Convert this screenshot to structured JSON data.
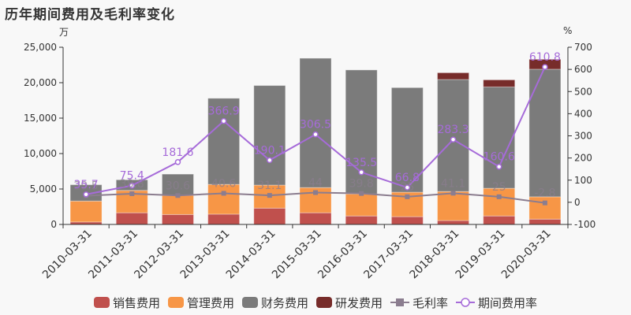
{
  "header": {
    "title": "历年期间费用及毛利率变化",
    "left_unit": "万",
    "right_unit": "%"
  },
  "colors": {
    "sales": "#c0504d",
    "admin": "#f79646",
    "finance": "#7b7b7b",
    "rnd": "#772c2a",
    "gross_margin": "#8b7d8f",
    "period_rate": "#a66bd9",
    "background": "#f8f8f8"
  },
  "legend": [
    {
      "label": "销售费用",
      "type": "box",
      "color": "#c0504d"
    },
    {
      "label": "管理费用",
      "type": "box",
      "color": "#f79646"
    },
    {
      "label": "财务费用",
      "type": "box",
      "color": "#7b7b7b"
    },
    {
      "label": "研发费用",
      "type": "box",
      "color": "#772c2a"
    },
    {
      "label": "毛利率",
      "type": "line-square",
      "color": "#8b7d8f"
    },
    {
      "label": "期间费用率",
      "type": "line-circle",
      "color": "#a66bd9"
    }
  ],
  "chart_data": {
    "type": "bar",
    "title": "历年期间费用及毛利率变化",
    "xlabel": "",
    "ylabel": "万",
    "y2label": "%",
    "ylim": [
      0,
      25000
    ],
    "y2lim": [
      -100,
      700
    ],
    "yticks": [
      "0",
      "5,000",
      "10,000",
      "15,000",
      "20,000",
      "25,000"
    ],
    "y2ticks": [
      "-100",
      "0",
      "100",
      "200",
      "300",
      "400",
      "500",
      "600",
      "700"
    ],
    "grid": false,
    "legend_position": "bottom",
    "categories": [
      "2010-03-31",
      "2011-03-31",
      "2012-03-31",
      "2013-03-31",
      "2014-03-31",
      "2015-03-31",
      "2016-03-31",
      "2017-03-31",
      "2018-03-31",
      "2019-03-31",
      "2020-03-31"
    ],
    "series": [
      {
        "name": "销售费用",
        "type": "bar",
        "stack": "expense",
        "axis": "left",
        "values": [
          350,
          1650,
          1400,
          1450,
          2300,
          1650,
          1200,
          1100,
          550,
          1200,
          750
        ]
      },
      {
        "name": "管理费用",
        "type": "bar",
        "stack": "expense",
        "axis": "left",
        "values": [
          2950,
          3150,
          2700,
          4200,
          3250,
          3550,
          3100,
          3450,
          4100,
          3900,
          3150
        ]
      },
      {
        "name": "财务费用",
        "type": "bar",
        "stack": "expense",
        "axis": "left",
        "values": [
          2300,
          1500,
          3000,
          12150,
          14050,
          18250,
          17500,
          14750,
          15800,
          14300,
          18000
        ]
      },
      {
        "name": "研发费用",
        "type": "bar",
        "stack": "expense",
        "axis": "left",
        "values": [
          0,
          0,
          0,
          0,
          0,
          0,
          0,
          0,
          950,
          1000,
          1400
        ]
      },
      {
        "name": "毛利率",
        "type": "line",
        "axis": "right",
        "values": [
          29.5,
          38.8,
          30.6,
          40.6,
          31.1,
          44,
          39.8,
          25,
          41.1,
          25,
          -2.8
        ]
      },
      {
        "name": "期间费用率",
        "type": "line",
        "axis": "right",
        "values": [
          35.7,
          75.4,
          181.6,
          366.9,
          190.1,
          306.5,
          135.5,
          66.8,
          283.3,
          160.6,
          610.8
        ]
      }
    ]
  }
}
